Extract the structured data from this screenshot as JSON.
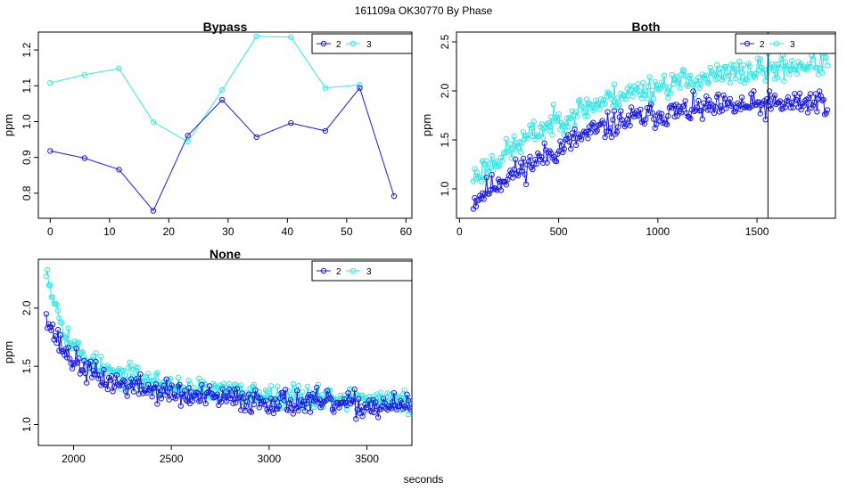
{
  "page": {
    "title": "161109a   OK30770   By Phase",
    "xlabel": "seconds"
  },
  "colors": {
    "series_2": "#1a1ae6",
    "series_3": "#33e6e6",
    "axis": "#000000"
  },
  "chart_data": [
    {
      "id": "bypass",
      "type": "line",
      "title": "Bypass",
      "xlabel": "",
      "ylabel": "ppm",
      "xlim": [
        -2,
        61
      ],
      "ylim": [
        0.73,
        1.25
      ],
      "xticks": [
        0,
        10,
        20,
        30,
        40,
        50,
        60
      ],
      "yticks": [
        0.8,
        0.9,
        1.0,
        1.1,
        1.2
      ],
      "ytick_labels": [
        "0.8",
        "0.9",
        "1.0",
        "1.1",
        "1.2"
      ],
      "legend": {
        "position": "top-right",
        "entries": [
          "2",
          "3"
        ]
      },
      "series": [
        {
          "name": "2",
          "x": [
            0,
            5.8,
            11.6,
            17.4,
            23.2,
            29,
            34.8,
            40.6,
            46.4,
            52.2,
            58
          ],
          "y": [
            0.918,
            0.898,
            0.866,
            0.751,
            0.961,
            1.061,
            0.957,
            0.996,
            0.974,
            1.094,
            0.792
          ]
        },
        {
          "name": "3",
          "x": [
            0,
            5.8,
            11.6,
            17.4,
            23.2,
            29,
            34.8,
            40.6,
            46.4,
            52.2
          ],
          "y": [
            1.108,
            1.131,
            1.148,
            0.999,
            0.944,
            1.088,
            1.238,
            1.236,
            1.094,
            1.103
          ]
        }
      ]
    },
    {
      "id": "both",
      "type": "line",
      "title": "Both",
      "xlabel": "",
      "ylabel": "ppm",
      "xlim": [
        -15,
        1895
      ],
      "ylim": [
        0.7,
        2.6
      ],
      "xticks": [
        0,
        500,
        1000,
        1500
      ],
      "yticks": [
        1.0,
        1.5,
        2.0,
        2.5
      ],
      "ytick_labels": [
        "1.0",
        "1.5",
        "2.0",
        "2.5"
      ],
      "vline": 1555,
      "legend": {
        "position": "top-right",
        "entries": [
          "2",
          "3"
        ]
      },
      "generator": {
        "x_start": 70,
        "x_end": 1855,
        "n": 270,
        "noise_2": 0.2,
        "noise_3": 0.2,
        "seed_2": 11,
        "seed_3": 23
      },
      "series": [
        {
          "name": "2",
          "trend_x": [
            70,
            200,
            400,
            600,
            800,
            1000,
            1200,
            1400,
            1600,
            1850
          ],
          "trend_y": [
            0.88,
            1.08,
            1.3,
            1.52,
            1.68,
            1.76,
            1.81,
            1.84,
            1.86,
            1.9
          ]
        },
        {
          "name": "3",
          "trend_x": [
            70,
            200,
            400,
            600,
            800,
            1000,
            1200,
            1400,
            1600,
            1850
          ],
          "trend_y": [
            1.12,
            1.32,
            1.6,
            1.8,
            1.95,
            2.05,
            2.12,
            2.18,
            2.23,
            2.3
          ]
        }
      ]
    },
    {
      "id": "none",
      "type": "line",
      "title": "None",
      "xlabel": "seconds",
      "ylabel": "ppm",
      "xlim": [
        1820,
        3730
      ],
      "ylim": [
        0.82,
        2.42
      ],
      "xticks": [
        2000,
        2500,
        3000,
        3500
      ],
      "yticks": [
        1.0,
        1.5,
        2.0
      ],
      "ytick_labels": [
        "1.0",
        "1.5",
        "2.0"
      ],
      "legend": {
        "position": "top-right",
        "entries": [
          "2",
          "3"
        ]
      },
      "generator": {
        "x_start": 1860,
        "x_end": 3725,
        "n": 280,
        "noise_2": 0.16,
        "noise_3": 0.15,
        "seed_2": 37,
        "seed_3": 53
      },
      "series": [
        {
          "name": "2",
          "trend_x": [
            1860,
            1880,
            1920,
            1960,
            2000,
            2100,
            2200,
            2400,
            2600,
            3000,
            3500,
            3725
          ],
          "trend_y": [
            2.0,
            1.85,
            1.72,
            1.62,
            1.55,
            1.43,
            1.36,
            1.3,
            1.24,
            1.2,
            1.16,
            1.15
          ]
        },
        {
          "name": "3",
          "trend_x": [
            1860,
            1880,
            1920,
            1960,
            2000,
            2100,
            2200,
            2400,
            2600,
            3000,
            3500,
            3725
          ],
          "trend_y": [
            2.38,
            2.2,
            1.98,
            1.8,
            1.68,
            1.52,
            1.44,
            1.37,
            1.3,
            1.26,
            1.22,
            1.2
          ]
        }
      ]
    }
  ]
}
